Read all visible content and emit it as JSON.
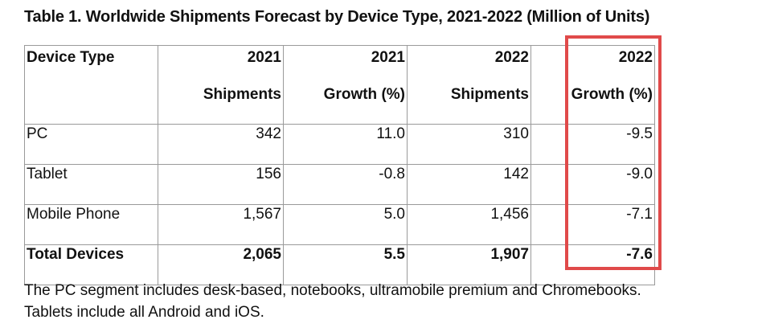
{
  "title": "Table 1. Worldwide Shipments Forecast by Device Type, 2021-2022 (Million of Units)",
  "table": {
    "headers": [
      {
        "line1": "Device Type",
        "line2": ""
      },
      {
        "line1": "2021",
        "line2": "Shipments"
      },
      {
        "line1": "2021",
        "line2": "Growth (%)"
      },
      {
        "line1": "2022",
        "line2": "Shipments"
      },
      {
        "line1": "2022",
        "line2": "Growth (%)"
      }
    ],
    "rows": [
      {
        "device": "PC",
        "ship2021": "342",
        "growth2021": "11.0",
        "ship2022": "310",
        "growth2022": "-9.5"
      },
      {
        "device": "Tablet",
        "ship2021": "156",
        "growth2021": "-0.8",
        "ship2022": "142",
        "growth2022": "-9.0"
      },
      {
        "device": "Mobile Phone",
        "ship2021": "1,567",
        "growth2021": "5.0",
        "ship2022": "1,456",
        "growth2022": "-7.1"
      },
      {
        "device": "Total Devices",
        "ship2021": "2,065",
        "growth2021": "5.5",
        "ship2022": "1,907",
        "growth2022": "-7.6"
      }
    ]
  },
  "footnotes": [
    "The PC segment includes desk-based, notebooks, ultramobile premium and Chromebooks.",
    "Tablets include all Android and iOS."
  ],
  "colors": {
    "highlight": "#e04a4a",
    "border": "#9a9a9a"
  }
}
